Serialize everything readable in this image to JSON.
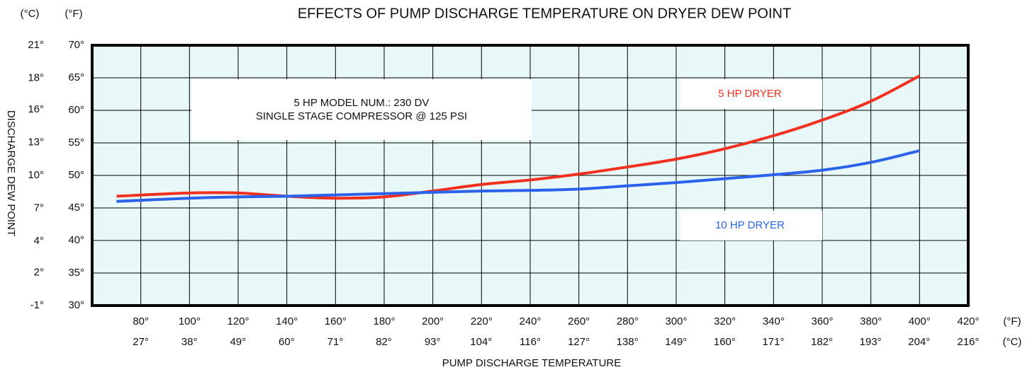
{
  "chart_data": {
    "type": "line",
    "title": "EFFECTS OF PUMP DISCHARGE TEMPERATURE ON DRYER DEW POINT",
    "xlabel": "PUMP DISCHARGE TEMPERATURE",
    "ylabel": "DISCHARGE DEW POINT",
    "x_unit_label": "(°F)",
    "x2_unit_label": "(°C)",
    "y_unit_label": "(°F)",
    "y2_unit_label": "(°C)",
    "annotation": [
      "5 HP MODEL NUM.: 230 DV",
      "SINGLE STAGE COMPRESSOR @ 125 PSI"
    ],
    "x": [
      70,
      100,
      120,
      140,
      160,
      180,
      200,
      220,
      240,
      260,
      280,
      300,
      320,
      340,
      360,
      380,
      400
    ],
    "series": [
      {
        "name": "5 HP DRYER",
        "color": "#f0311f",
        "values": [
          46.8,
          47.3,
          47.3,
          46.8,
          46.5,
          46.7,
          47.6,
          48.6,
          49.3,
          50.2,
          51.3,
          52.5,
          54.1,
          56.1,
          58.5,
          61.4,
          65.3
        ]
      },
      {
        "name": "10 HP DRYER",
        "color": "#2a62ec",
        "values": [
          46.0,
          46.5,
          46.7,
          46.8,
          47.0,
          47.2,
          47.4,
          47.6,
          47.7,
          47.9,
          48.4,
          48.9,
          49.5,
          50.1,
          50.8,
          52.0,
          53.8
        ]
      }
    ],
    "xlim": [
      60,
      420
    ],
    "xticks": [
      {
        "value": 80,
        "label": "80°"
      },
      {
        "value": 100,
        "label": "100°"
      },
      {
        "value": 120,
        "label": "120°"
      },
      {
        "value": 140,
        "label": "140°"
      },
      {
        "value": 160,
        "label": "160°"
      },
      {
        "value": 180,
        "label": "180°"
      },
      {
        "value": 200,
        "label": "200°"
      },
      {
        "value": 220,
        "label": "220°"
      },
      {
        "value": 240,
        "label": "240°"
      },
      {
        "value": 260,
        "label": "260°"
      },
      {
        "value": 280,
        "label": "280°"
      },
      {
        "value": 300,
        "label": "300°"
      },
      {
        "value": 320,
        "label": "320°"
      },
      {
        "value": 340,
        "label": "340°"
      },
      {
        "value": 360,
        "label": "360°"
      },
      {
        "value": 380,
        "label": "380°"
      },
      {
        "value": 400,
        "label": "400°"
      },
      {
        "value": 420,
        "label": "420°"
      }
    ],
    "x2lim": [
      15.6,
      215.6
    ],
    "x2ticks": [
      {
        "value": 26.7,
        "label": "27°"
      },
      {
        "value": 37.8,
        "label": "38°"
      },
      {
        "value": 48.9,
        "label": "49°"
      },
      {
        "value": 60.0,
        "label": "60°"
      },
      {
        "value": 71.1,
        "label": "71°"
      },
      {
        "value": 82.2,
        "label": "82°"
      },
      {
        "value": 93.3,
        "label": "93°"
      },
      {
        "value": 104.4,
        "label": "104°"
      },
      {
        "value": 115.6,
        "label": "116°"
      },
      {
        "value": 126.7,
        "label": "127°"
      },
      {
        "value": 137.8,
        "label": "138°"
      },
      {
        "value": 148.9,
        "label": "149°"
      },
      {
        "value": 160.0,
        "label": "160°"
      },
      {
        "value": 171.1,
        "label": "171°"
      },
      {
        "value": 182.2,
        "label": "182°"
      },
      {
        "value": 193.3,
        "label": "193°"
      },
      {
        "value": 204.4,
        "label": "204°"
      },
      {
        "value": 215.6,
        "label": "216°"
      }
    ],
    "ylim": [
      30,
      70
    ],
    "yticks": [
      {
        "value": 30,
        "label": "30°"
      },
      {
        "value": 35,
        "label": "35°"
      },
      {
        "value": 40,
        "label": "40°"
      },
      {
        "value": 45,
        "label": "45°"
      },
      {
        "value": 50,
        "label": "50°"
      },
      {
        "value": 55,
        "label": "55°"
      },
      {
        "value": 60,
        "label": "60°"
      },
      {
        "value": 65,
        "label": "65°"
      },
      {
        "value": 70,
        "label": "70°"
      }
    ],
    "y2lim": [
      -1.1,
      21.1
    ],
    "y2ticks": [
      {
        "value": -1.1,
        "label": "-1°"
      },
      {
        "value": 1.7,
        "label": "2°"
      },
      {
        "value": 4.4,
        "label": "4°"
      },
      {
        "value": 7.2,
        "label": "7°"
      },
      {
        "value": 10.0,
        "label": "10°"
      },
      {
        "value": 12.8,
        "label": "13°"
      },
      {
        "value": 15.6,
        "label": "16°"
      },
      {
        "value": 18.3,
        "label": "18°"
      },
      {
        "value": 21.1,
        "label": "21°"
      }
    ],
    "grid": true,
    "background": "#e8f7f7"
  }
}
